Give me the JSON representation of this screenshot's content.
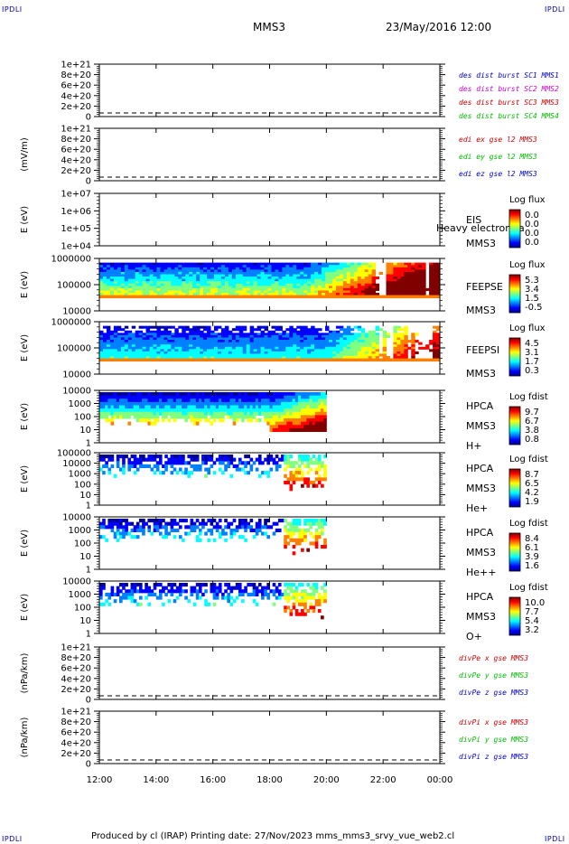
{
  "corners": {
    "tl": "IPDLI",
    "tr": "IPDLI",
    "bl": "IPDLI",
    "br": "IPDLI"
  },
  "header": {
    "mission": "MMS3",
    "date": "23/May/2016 12:00"
  },
  "footer": {
    "text": "Produced by cl (IRAP)    Printing date: 27/Nov/2023    mms_mms3_srvy_vue_web2.cl"
  },
  "xaxis": {
    "ticks": [
      "12:00",
      "14:00",
      "16:00",
      "18:00",
      "20:00",
      "22:00",
      "00:00"
    ]
  },
  "chart_data": [
    {
      "type": "line",
      "ylabel": "",
      "yticks": [
        "1e+21",
        "8e+20",
        "6e+20",
        "4e+20",
        "2e+20",
        "0"
      ],
      "legend": [
        "des dist burst SC1 MMS1",
        "des dist burst SC2 MMS2",
        "des dist burst SC3 MMS3",
        "des dist burst SC4 MMS4"
      ],
      "legend_colors": [
        "#0000cc",
        "#cc00cc",
        "#cc0000",
        "#00bb00"
      ],
      "series": []
    },
    {
      "type": "line",
      "ylabel": "(mV/m)",
      "yticks": [
        "1e+21",
        "8e+20",
        "6e+20",
        "4e+20",
        "2e+20",
        "0"
      ],
      "legend": [
        "edi ex gse l2 MMS3",
        "edi ey gse l2 MMS3",
        "edi ez gse l2 MMS3"
      ],
      "legend_colors": [
        "#cc0000",
        "#00bb00",
        "#0000cc"
      ],
      "series": []
    },
    {
      "type": "heatmap",
      "ylabel": "E (eV)",
      "yticks": [
        "1e+07",
        "1e+06",
        "1e+05",
        "1e+04"
      ],
      "instrument": [
        "EIS",
        "MMS3"
      ],
      "overlay": "Heavy electron ta",
      "cb_title": "Log flux",
      "cb_values": [
        "0.0",
        "0.0",
        "0.0",
        "0.0"
      ],
      "coverage_end": "—"
    },
    {
      "type": "heatmap",
      "ylabel": "E (eV)",
      "yticks": [
        "1000000",
        "100000",
        "10000"
      ],
      "instrument": [
        "FEEPSE",
        "MMS3"
      ],
      "cb_title": "Log flux",
      "cb_values": [
        "5.3",
        "3.4",
        "1.5",
        "-0.5"
      ]
    },
    {
      "type": "heatmap",
      "ylabel": "E (eV)",
      "yticks": [
        "1000000",
        "100000",
        "10000"
      ],
      "instrument": [
        "FEEPSI",
        "MMS3"
      ],
      "cb_title": "Log flux",
      "cb_values": [
        "4.5",
        "3.1",
        "1.7",
        "0.3"
      ]
    },
    {
      "type": "heatmap",
      "ylabel": "E (eV)",
      "yticks": [
        "10000",
        "1000",
        "100",
        "10",
        "1"
      ],
      "instrument": [
        "HPCA",
        "MMS3",
        "H+"
      ],
      "cb_title": "Log fdist",
      "cb_values": [
        "9.7",
        "6.7",
        "3.8",
        "0.8"
      ]
    },
    {
      "type": "heatmap",
      "ylabel": "E (eV)",
      "yticks": [
        "100000",
        "10000",
        "1000",
        "100",
        "10",
        "1"
      ],
      "instrument": [
        "HPCA",
        "MMS3",
        "He+"
      ],
      "cb_title": "Log fdist",
      "cb_values": [
        "8.7",
        "6.5",
        "4.2",
        "1.9"
      ]
    },
    {
      "type": "heatmap",
      "ylabel": "E (eV)",
      "yticks": [
        "10000",
        "1000",
        "100",
        "10",
        "1"
      ],
      "instrument": [
        "HPCA",
        "MMS3",
        "He++"
      ],
      "cb_title": "Log fdist",
      "cb_values": [
        "8.4",
        "6.1",
        "3.9",
        "1.6"
      ]
    },
    {
      "type": "heatmap",
      "ylabel": "E (eV)",
      "yticks": [
        "10000",
        "1000",
        "100",
        "10",
        "1"
      ],
      "instrument": [
        "HPCA",
        "MMS3",
        "O+"
      ],
      "cb_title": "Log fdist",
      "cb_values": [
        "10.0",
        "7.7",
        "5.4",
        "3.2"
      ]
    },
    {
      "type": "line",
      "ylabel": "(nPa/km)",
      "yticks": [
        "1e+21",
        "8e+20",
        "6e+20",
        "4e+20",
        "2e+20",
        "0"
      ],
      "legend": [
        "divPe x gse MMS3",
        "divPe y gse MMS3",
        "divPe z gse MMS3"
      ],
      "legend_colors": [
        "#cc0000",
        "#00bb00",
        "#0000cc"
      ],
      "series": []
    },
    {
      "type": "line",
      "ylabel": "(nPa/km)",
      "yticks": [
        "1e+21",
        "8e+20",
        "6e+20",
        "4e+20",
        "2e+20",
        "0"
      ],
      "legend": [
        "divPi x gse MMS3",
        "divPi y gse MMS3",
        "divPi z gse MMS3"
      ],
      "legend_colors": [
        "#cc0000",
        "#00bb00",
        "#0000cc"
      ],
      "series": []
    }
  ]
}
